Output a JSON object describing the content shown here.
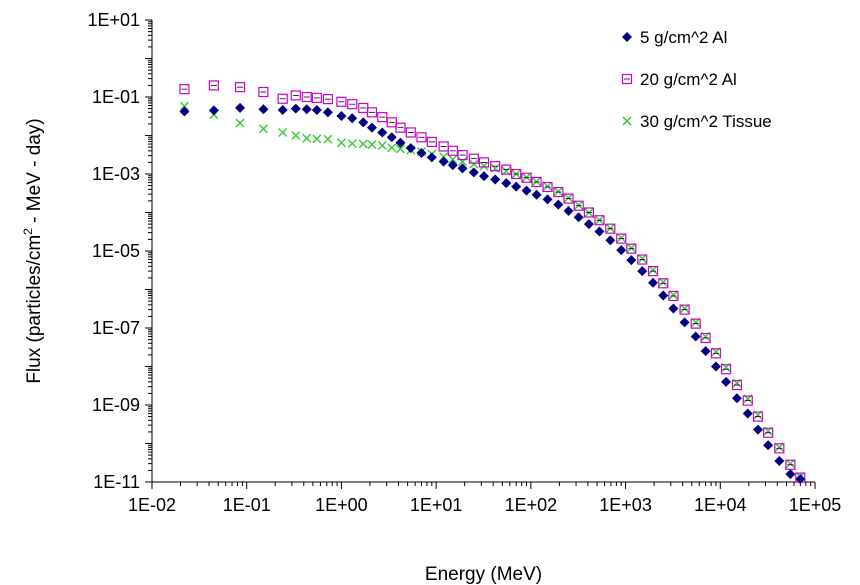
{
  "chart_data": {
    "type": "scatter",
    "xscale": "log",
    "yscale": "log",
    "xlim": [
      0.01,
      100000
    ],
    "ylim": [
      1e-11,
      10
    ],
    "xlabel": "Energy (MeV)",
    "ylabel_main": "Flux (particles/cm",
    "ylabel_sup": "2",
    "ylabel_tail": " - MeV - day)",
    "x_ticks": [
      "1E-02",
      "1E-01",
      "1E+00",
      "1E+01",
      "1E+02",
      "1E+03",
      "1E+04",
      "1E+05"
    ],
    "y_ticks": [
      "1E-11",
      "1E-09",
      "1E-07",
      "1E-05",
      "1E-03",
      "1E-01",
      "1E+01"
    ],
    "grid": false,
    "legend_position": "top-right",
    "series": [
      {
        "name": "5 g/cm^2 Al",
        "marker": "diamond",
        "color": "#000080",
        "points": [
          [
            0.022,
            0.042
          ],
          [
            0.045,
            0.045
          ],
          [
            0.085,
            0.052
          ],
          [
            0.15,
            0.048
          ],
          [
            0.24,
            0.046
          ],
          [
            0.33,
            0.05
          ],
          [
            0.43,
            0.048
          ],
          [
            0.55,
            0.046
          ],
          [
            0.72,
            0.04
          ],
          [
            1.0,
            0.032
          ],
          [
            1.3,
            0.028
          ],
          [
            1.7,
            0.022
          ],
          [
            2.1,
            0.016
          ],
          [
            2.7,
            0.012
          ],
          [
            3.4,
            0.009
          ],
          [
            4.2,
            0.0065
          ],
          [
            5.4,
            0.0047
          ],
          [
            7.0,
            0.0035
          ],
          [
            9.0,
            0.0027
          ],
          [
            12,
            0.0021
          ],
          [
            15,
            0.0017
          ],
          [
            19,
            0.0014
          ],
          [
            25,
            0.0011
          ],
          [
            32,
            0.00088
          ],
          [
            42,
            0.00072
          ],
          [
            55,
            0.00058
          ],
          [
            70,
            0.00047
          ],
          [
            90,
            0.00037
          ],
          [
            115,
            0.00029
          ],
          [
            150,
            0.00022
          ],
          [
            195,
            0.00016
          ],
          [
            250,
            0.00011
          ],
          [
            320,
            7.5e-05
          ],
          [
            410,
            5e-05
          ],
          [
            530,
            3.2e-05
          ],
          [
            690,
            1.9e-05
          ],
          [
            900,
            1.05e-05
          ],
          [
            1150,
            5.8e-06
          ],
          [
            1500,
            3e-06
          ],
          [
            1950,
            1.5e-06
          ],
          [
            2500,
            7e-07
          ],
          [
            3200,
            3.2e-07
          ],
          [
            4200,
            1.4e-07
          ],
          [
            5500,
            6e-08
          ],
          [
            7000,
            2.5e-08
          ],
          [
            9000,
            1e-08
          ],
          [
            11500,
            4e-09
          ],
          [
            15000,
            1.5e-09
          ],
          [
            19500,
            6e-10
          ],
          [
            25000,
            2.3e-10
          ],
          [
            32000,
            9e-11
          ],
          [
            42000,
            3.5e-11
          ],
          [
            55000,
            1.6e-11
          ],
          [
            70000,
            1.2e-11
          ]
        ]
      },
      {
        "name": "20 g/cm^2 Al",
        "marker": "square",
        "color": "#cc00cc",
        "points": [
          [
            0.022,
            0.16
          ],
          [
            0.045,
            0.2
          ],
          [
            0.085,
            0.18
          ],
          [
            0.15,
            0.135
          ],
          [
            0.24,
            0.09
          ],
          [
            0.33,
            0.11
          ],
          [
            0.43,
            0.1
          ],
          [
            0.55,
            0.095
          ],
          [
            0.72,
            0.088
          ],
          [
            1.0,
            0.075
          ],
          [
            1.3,
            0.065
          ],
          [
            1.7,
            0.052
          ],
          [
            2.1,
            0.04
          ],
          [
            2.7,
            0.03
          ],
          [
            3.4,
            0.022
          ],
          [
            4.2,
            0.016
          ],
          [
            5.4,
            0.012
          ],
          [
            7.0,
            0.009
          ],
          [
            9.0,
            0.0068
          ],
          [
            12,
            0.0052
          ],
          [
            15,
            0.004
          ],
          [
            19,
            0.0031
          ],
          [
            25,
            0.0025
          ],
          [
            32,
            0.002
          ],
          [
            42,
            0.0016
          ],
          [
            55,
            0.0013
          ],
          [
            70,
            0.001
          ],
          [
            90,
            0.0008
          ],
          [
            115,
            0.00062
          ],
          [
            150,
            0.00046
          ],
          [
            195,
            0.00034
          ],
          [
            250,
            0.00023
          ],
          [
            320,
            0.00015
          ],
          [
            410,
            0.0001
          ],
          [
            530,
            6.3e-05
          ],
          [
            690,
            3.8e-05
          ],
          [
            900,
            2.1e-05
          ],
          [
            1150,
            1.15e-05
          ],
          [
            1500,
            6e-06
          ],
          [
            1950,
            3e-06
          ],
          [
            2500,
            1.45e-06
          ],
          [
            3200,
            6.8e-07
          ],
          [
            4200,
            3e-07
          ],
          [
            5500,
            1.3e-07
          ],
          [
            7000,
            5.5e-08
          ],
          [
            9000,
            2.2e-08
          ],
          [
            11500,
            8.5e-09
          ],
          [
            15000,
            3.3e-09
          ],
          [
            19500,
            1.3e-09
          ],
          [
            25000,
            5e-10
          ],
          [
            32000,
            1.9e-10
          ],
          [
            42000,
            7.5e-11
          ],
          [
            55000,
            2.8e-11
          ],
          [
            70000,
            1.3e-11
          ]
        ]
      },
      {
        "name": "30 g/cm^2 Tissue",
        "marker": "x",
        "color": "#33cc33",
        "points": [
          [
            0.022,
            0.058
          ],
          [
            0.045,
            0.035
          ],
          [
            0.085,
            0.021
          ],
          [
            0.15,
            0.015
          ],
          [
            0.24,
            0.012
          ],
          [
            0.33,
            0.01
          ],
          [
            0.43,
            0.0085
          ],
          [
            0.55,
            0.0082
          ],
          [
            0.72,
            0.008
          ],
          [
            1.0,
            0.0065
          ],
          [
            1.3,
            0.0062
          ],
          [
            1.7,
            0.006
          ],
          [
            2.1,
            0.0058
          ],
          [
            2.7,
            0.0055
          ],
          [
            3.4,
            0.0048
          ],
          [
            4.2,
            0.0045
          ],
          [
            5.4,
            0.0042
          ],
          [
            7.0,
            0.0038
          ],
          [
            9.0,
            0.0033
          ],
          [
            12,
            0.0028
          ],
          [
            15,
            0.0024
          ],
          [
            19,
            0.0021
          ],
          [
            25,
            0.0018
          ],
          [
            32,
            0.0016
          ],
          [
            42,
            0.0014
          ],
          [
            55,
            0.0012
          ],
          [
            70,
            0.001
          ],
          [
            90,
            0.00082
          ],
          [
            115,
            0.00064
          ],
          [
            150,
            0.00048
          ],
          [
            195,
            0.00035
          ],
          [
            250,
            0.00024
          ],
          [
            320,
            0.000155
          ],
          [
            410,
            0.0001
          ],
          [
            530,
            6.4e-05
          ],
          [
            690,
            3.9e-05
          ],
          [
            900,
            2.2e-05
          ],
          [
            1150,
            1.2e-05
          ],
          [
            1500,
            6.3e-06
          ],
          [
            1950,
            3.2e-06
          ],
          [
            2500,
            1.55e-06
          ],
          [
            3200,
            7.2e-07
          ],
          [
            4200,
            3.2e-07
          ],
          [
            5500,
            1.4e-07
          ],
          [
            7000,
            6e-08
          ],
          [
            9000,
            2.4e-08
          ],
          [
            11500,
            9.5e-09
          ],
          [
            15000,
            3.7e-09
          ],
          [
            19500,
            1.45e-09
          ],
          [
            25000,
            5.5e-10
          ],
          [
            32000,
            2.1e-10
          ],
          [
            42000,
            8e-11
          ],
          [
            55000,
            3e-11
          ],
          [
            70000,
            1.4e-11
          ]
        ]
      }
    ]
  }
}
